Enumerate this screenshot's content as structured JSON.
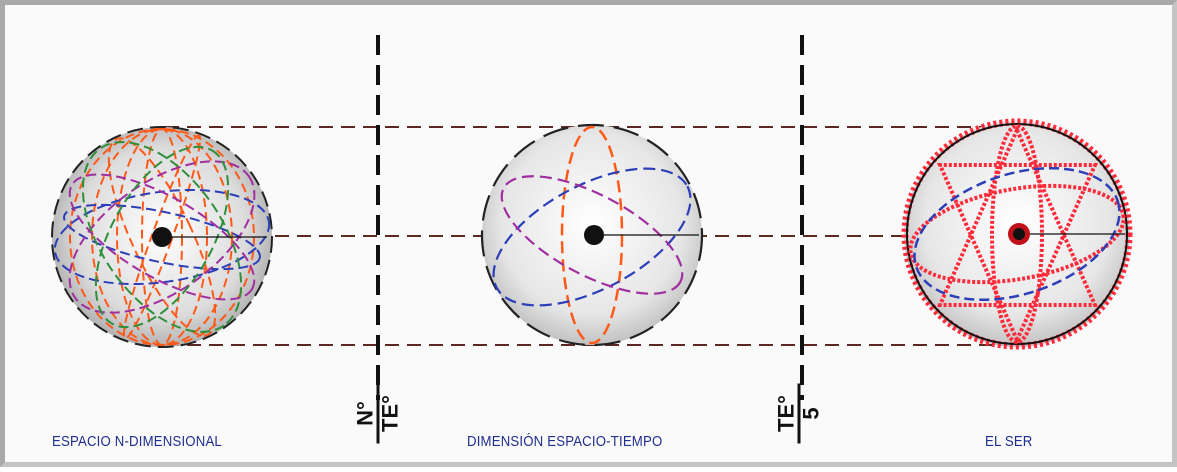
{
  "captions": {
    "left": "ESPACIO N-DIMENSIONAL",
    "middle": "DIMENSIÓN ESPACIO-TIEMPO",
    "right": "EL SER"
  },
  "divider_labels": {
    "first": {
      "numerator": "N°",
      "denominator": "TE°"
    },
    "second": {
      "numerator": "TE°",
      "denominator": "5"
    }
  },
  "colors": {
    "caption": "#1f2f8f",
    "guide_lines": "#5a2a22",
    "orange": "#ff5a1a",
    "blue": "#2c3fb8",
    "purple": "#a02fa0",
    "green": "#2f8f3a",
    "red": "#ff2a3a"
  }
}
